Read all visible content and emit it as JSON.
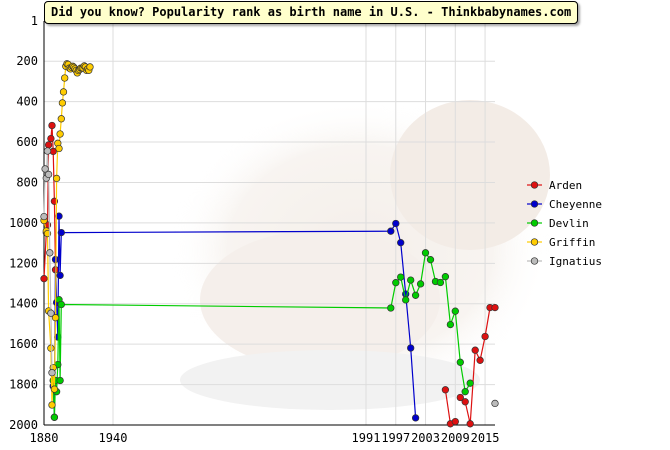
{
  "chart_data": {
    "type": "line",
    "title": "Did you know? Popularity rank as birth name in U.S. - Thinkbabynames.com",
    "xlabel": "",
    "ylabel": "",
    "xlim": [
      1880,
      2018
    ],
    "ylim": [
      2000,
      1
    ],
    "y_inverted": true,
    "x_ticks": [
      1880,
      1940,
      1991,
      1997,
      2003,
      2009,
      2015
    ],
    "x_tick_labels": [
      "1880",
      "1940",
      "1991",
      "1997",
      "2003",
      "2009",
      "2015"
    ],
    "y_ticks": [
      1,
      200,
      400,
      600,
      800,
      1000,
      1200,
      1400,
      1600,
      1800,
      2000
    ],
    "y_tick_labels": [
      "1",
      "200",
      "400",
      "600",
      "800",
      "1000",
      "1200",
      "1400",
      "1600",
      "1800",
      "2000"
    ],
    "grid": true,
    "legend_position": "right",
    "series": [
      {
        "name": "Arden",
        "color": "#dd1111",
        "segments": [
          [
            [
              1880,
              1276
            ],
            [
              1882,
              1048
            ],
            [
              1883,
              1010
            ],
            [
              1884,
              614
            ],
            [
              1886,
              583
            ],
            [
              1887,
              518
            ],
            [
              1888,
              646
            ],
            [
              1889,
              893
            ],
            [
              1890,
              1232
            ]
          ],
          [
            [
              2007,
              1826
            ],
            [
              2008,
              1994
            ],
            [
              2009,
              1983
            ]
          ],
          [
            [
              2010,
              1864
            ],
            [
              2011,
              1885
            ],
            [
              2012,
              1994
            ],
            [
              2013,
              1630
            ],
            [
              2014,
              1680
            ],
            [
              2015,
              1562
            ],
            [
              2016,
              1419
            ],
            [
              2017,
              1419
            ]
          ]
        ]
      },
      {
        "name": "Cheyenne",
        "color": "#0000cc",
        "segments": [
          [
            [
              1888,
              1808
            ],
            [
              1889,
              1962
            ],
            [
              1890,
              1181
            ],
            [
              1891,
              1394
            ],
            [
              1892,
              1565
            ],
            [
              1893,
              967
            ],
            [
              1894,
              1260
            ],
            [
              1895,
              1048
            ],
            [
              1996,
              1041
            ],
            [
              1997,
              1003
            ],
            [
              1998,
              1098
            ],
            [
              1999,
              1352
            ],
            [
              2000,
              1619
            ],
            [
              2001,
              1965
            ]
          ]
        ]
      },
      {
        "name": "Devlin",
        "color": "#00cc00",
        "segments": [
          [
            [
              1888,
              1780
            ],
            [
              1889,
              1962
            ],
            [
              1890,
              1780
            ],
            [
              1891,
              1835
            ],
            [
              1892,
              1701
            ],
            [
              1893,
              1380
            ],
            [
              1894,
              1780
            ],
            [
              1895,
              1404
            ],
            [
              1996,
              1421
            ],
            [
              1997,
              1296
            ],
            [
              1998,
              1268
            ],
            [
              1999,
              1381
            ],
            [
              2000,
              1283
            ],
            [
              2001,
              1358
            ],
            [
              2002,
              1302
            ],
            [
              2003,
              1148
            ],
            [
              2004,
              1182
            ],
            [
              2005,
              1290
            ],
            [
              2006,
              1295
            ],
            [
              2007,
              1266
            ],
            [
              2008,
              1503
            ],
            [
              2009,
              1437
            ],
            [
              2010,
              1690
            ],
            [
              2011,
              1835
            ],
            [
              2012,
              1793
            ]
          ]
        ]
      },
      {
        "name": "Griffin",
        "color": "#ffcc00",
        "segments": [
          [
            [
              1880,
              988
            ],
            [
              1882,
              1040
            ],
            [
              1883,
              1053
            ],
            [
              1884,
              1436
            ],
            [
              1886,
              1620
            ],
            [
              1887,
              1901
            ],
            [
              1888,
              1716
            ],
            [
              1889,
              1823
            ],
            [
              1890,
              1469
            ],
            [
              1891,
              780
            ],
            [
              1892,
              606
            ],
            [
              1893,
              632
            ],
            [
              1894,
              560
            ],
            [
              1895,
              485
            ],
            [
              1896,
              406
            ],
            [
              1897,
              352
            ],
            [
              1898,
              283
            ],
            [
              1899,
              225
            ],
            [
              1900,
              213
            ],
            [
              1901,
              216
            ],
            [
              1902,
              234
            ],
            [
              1903,
              238
            ],
            [
              1904,
              230
            ],
            [
              1905,
              225
            ],
            [
              1906,
              230
            ],
            [
              1907,
              238
            ],
            [
              1908,
              246
            ],
            [
              1909,
              258
            ],
            [
              1910,
              246
            ],
            [
              1911,
              241
            ],
            [
              1912,
              234
            ],
            [
              1913,
              234
            ],
            [
              1914,
              234
            ],
            [
              1915,
              223
            ],
            [
              1916,
              228
            ],
            [
              1917,
              245
            ],
            [
              1918,
              238
            ],
            [
              1919,
              245
            ],
            [
              1920,
              228
            ]
          ]
        ]
      },
      {
        "name": "Ignatius",
        "color": "#bbbbbb",
        "segments": [
          [
            [
              1880,
              969
            ],
            [
              1881,
              733
            ],
            [
              1882,
              779
            ],
            [
              1883,
              644
            ],
            [
              1884,
              760
            ],
            [
              1885,
              1148
            ],
            [
              1886,
              1447
            ],
            [
              1887,
              1741
            ]
          ],
          [
            [
              2017,
              1893
            ]
          ]
        ]
      }
    ]
  }
}
